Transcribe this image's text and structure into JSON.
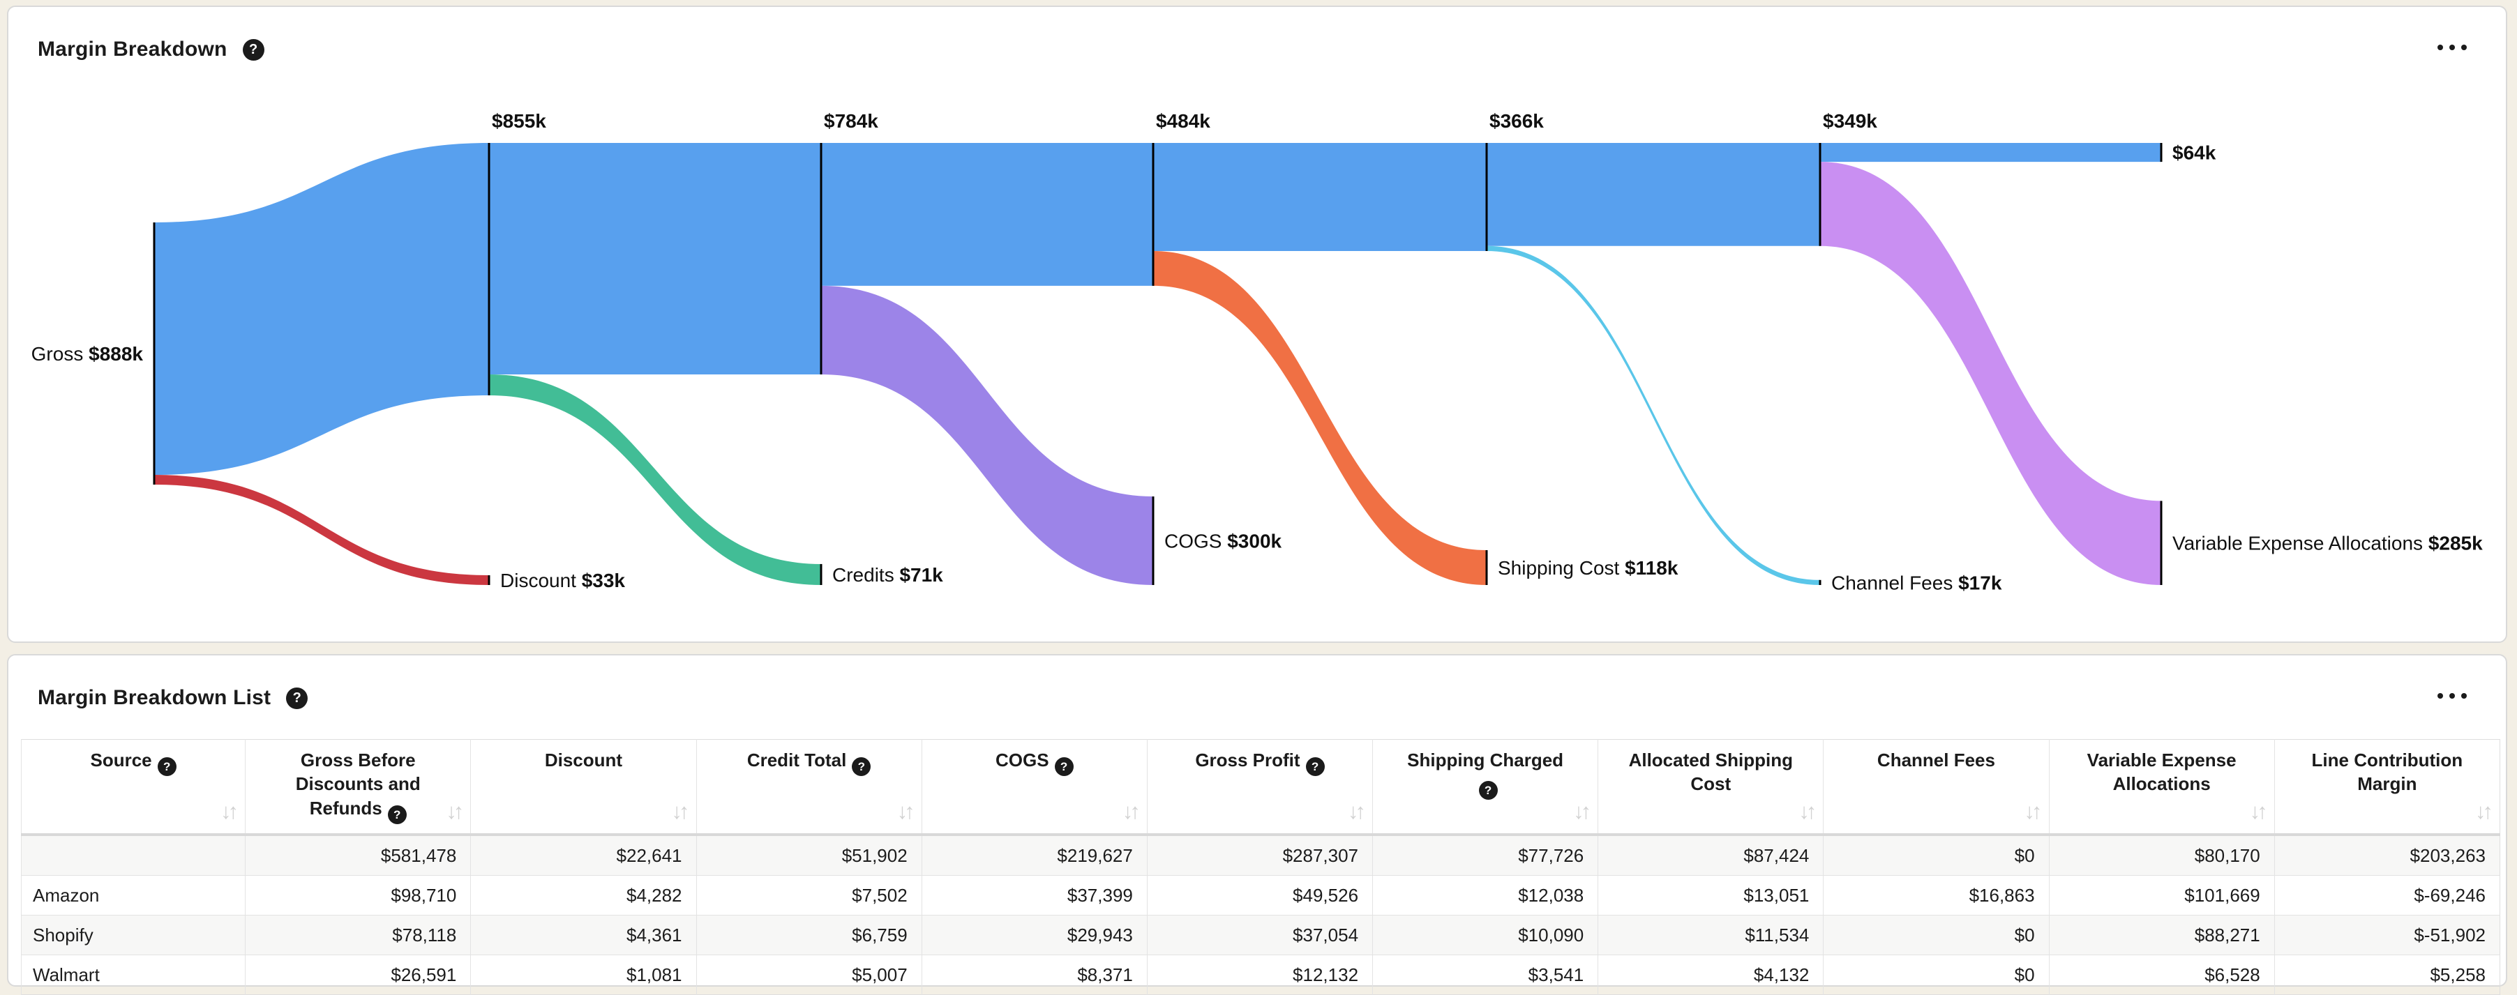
{
  "icons": {
    "help": "?",
    "sort_down": "↓",
    "sort_up": "↑",
    "menu": "ellipsis"
  },
  "sankey_card": {
    "title": "Margin Breakdown"
  },
  "list_card": {
    "title": "Margin Breakdown List"
  },
  "chart_data": {
    "type": "sankey",
    "title": "Margin Breakdown",
    "unit": "USD thousands",
    "main_color": "#58a0ee",
    "node_color": "#000000",
    "source_node": {
      "name": "Gross",
      "display_value": "$888k",
      "value": 888
    },
    "stage_values": [
      {
        "display_value": "$855k",
        "value": 855
      },
      {
        "display_value": "$784k",
        "value": 784
      },
      {
        "display_value": "$484k",
        "value": 484
      },
      {
        "display_value": "$366k",
        "value": 366
      },
      {
        "display_value": "$349k",
        "value": 349
      },
      {
        "display_value": "$64k",
        "value": 64
      }
    ],
    "outflows": [
      {
        "label": "Discount",
        "display_value": "$33k",
        "value": 33,
        "color": "#cb3740"
      },
      {
        "label": "Credits",
        "display_value": "$71k",
        "value": 71,
        "color": "#42bd96"
      },
      {
        "label": "COGS",
        "display_value": "$300k",
        "value": 300,
        "color": "#9c84e8"
      },
      {
        "label": "Shipping Cost",
        "display_value": "$118k",
        "value": 118,
        "color": "#f07044"
      },
      {
        "label": "Channel Fees",
        "display_value": "$17k",
        "value": 17,
        "color": "#5ac6e9"
      },
      {
        "label": "Variable Expense Allocations",
        "display_value": "$285k",
        "value": 285,
        "color": "#c98ff2"
      }
    ]
  },
  "table": {
    "columns": [
      {
        "label": "Source",
        "help": true
      },
      {
        "label": "Gross Before Discounts and Refunds",
        "help": true
      },
      {
        "label": "Discount",
        "help": false
      },
      {
        "label": "Credit Total",
        "help": true
      },
      {
        "label": "COGS",
        "help": true
      },
      {
        "label": "Gross Profit",
        "help": true
      },
      {
        "label": "Shipping Charged",
        "help": true
      },
      {
        "label": "Allocated Shipping Cost",
        "help": false
      },
      {
        "label": "Channel Fees",
        "help": false
      },
      {
        "label": "Variable Expense Allocations",
        "help": false
      },
      {
        "label": "Line Contribution Margin",
        "help": false
      }
    ],
    "rows": [
      {
        "source": "",
        "values": [
          "$581,478",
          "$22,641",
          "$51,902",
          "$219,627",
          "$287,307",
          "$77,726",
          "$87,424",
          "$0",
          "$80,170",
          "$203,263"
        ]
      },
      {
        "source": "Amazon",
        "values": [
          "$98,710",
          "$4,282",
          "$7,502",
          "$37,399",
          "$49,526",
          "$12,038",
          "$13,051",
          "$16,863",
          "$101,669",
          "$-69,246"
        ]
      },
      {
        "source": "Shopify",
        "values": [
          "$78,118",
          "$4,361",
          "$6,759",
          "$29,943",
          "$37,054",
          "$10,090",
          "$11,534",
          "$0",
          "$88,271",
          "$-51,902"
        ]
      },
      {
        "source": "Walmart",
        "values": [
          "$26,591",
          "$1,081",
          "$5,007",
          "$8,371",
          "$12,132",
          "$3,541",
          "$4,132",
          "$0",
          "$6,528",
          "$5,258"
        ]
      }
    ]
  }
}
